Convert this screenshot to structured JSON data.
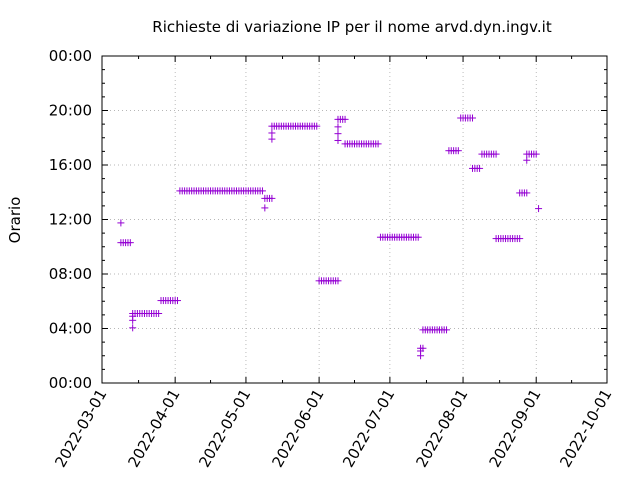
{
  "chart_data": {
    "type": "scatter",
    "title": "Richieste di variazione IP per il nome arvd.dyn.ingv.it",
    "xlabel": "",
    "ylabel": "Orario",
    "x_tick_labels": [
      "2022-03-01",
      "2022-04-01",
      "2022-05-01",
      "2022-06-01",
      "2022-07-01",
      "2022-08-01",
      "2022-09-01",
      "2022-10-01"
    ],
    "y_tick_labels": [
      "00:00",
      "04:00",
      "08:00",
      "12:00",
      "16:00",
      "20:00",
      "00:00"
    ],
    "xlim": [
      "2022-03-01",
      "2022-10-01"
    ],
    "ylim_hours": [
      0,
      24
    ],
    "grid": true,
    "marker": "+",
    "color": "#9400d3",
    "series": [
      {
        "points": [
          [
            "2022-03-09",
            11.75
          ],
          [
            "2022-03-09",
            10.3
          ],
          [
            "2022-03-10",
            10.3
          ],
          [
            "2022-03-11",
            10.3
          ],
          [
            "2022-03-12",
            10.3
          ],
          [
            "2022-03-13",
            10.3
          ],
          [
            "2022-03-14",
            4.05
          ],
          [
            "2022-03-14",
            4.6
          ],
          [
            "2022-03-14",
            4.9
          ],
          [
            "2022-03-14",
            5.1
          ],
          [
            "2022-03-15",
            5.1
          ],
          [
            "2022-03-16",
            5.1
          ],
          [
            "2022-03-17",
            5.1
          ],
          [
            "2022-03-18",
            5.1
          ],
          [
            "2022-03-19",
            5.1
          ],
          [
            "2022-03-20",
            5.1
          ],
          [
            "2022-03-21",
            5.1
          ],
          [
            "2022-03-22",
            5.1
          ],
          [
            "2022-03-23",
            5.1
          ],
          [
            "2022-03-24",
            5.1
          ],
          [
            "2022-03-25",
            5.1
          ],
          [
            "2022-03-26",
            6.05
          ],
          [
            "2022-03-27",
            6.05
          ],
          [
            "2022-03-28",
            6.05
          ],
          [
            "2022-03-29",
            6.05
          ],
          [
            "2022-03-30",
            6.05
          ],
          [
            "2022-03-31",
            6.05
          ],
          [
            "2022-04-01",
            6.05
          ],
          [
            "2022-04-02",
            6.05
          ],
          [
            "2022-04-03",
            14.1
          ],
          [
            "2022-04-04",
            14.1
          ],
          [
            "2022-04-05",
            14.1
          ],
          [
            "2022-04-06",
            14.1
          ],
          [
            "2022-04-07",
            14.1
          ],
          [
            "2022-04-08",
            14.1
          ],
          [
            "2022-04-09",
            14.1
          ],
          [
            "2022-04-10",
            14.1
          ],
          [
            "2022-04-11",
            14.1
          ],
          [
            "2022-04-12",
            14.1
          ],
          [
            "2022-04-13",
            14.1
          ],
          [
            "2022-04-14",
            14.1
          ],
          [
            "2022-04-15",
            14.1
          ],
          [
            "2022-04-16",
            14.1
          ],
          [
            "2022-04-17",
            14.1
          ],
          [
            "2022-04-18",
            14.1
          ],
          [
            "2022-04-19",
            14.1
          ],
          [
            "2022-04-20",
            14.1
          ],
          [
            "2022-04-21",
            14.1
          ],
          [
            "2022-04-22",
            14.1
          ],
          [
            "2022-04-23",
            14.1
          ],
          [
            "2022-04-24",
            14.1
          ],
          [
            "2022-04-25",
            14.1
          ],
          [
            "2022-04-26",
            14.1
          ],
          [
            "2022-04-27",
            14.1
          ],
          [
            "2022-04-28",
            14.1
          ],
          [
            "2022-04-29",
            14.1
          ],
          [
            "2022-04-30",
            14.1
          ],
          [
            "2022-05-01",
            14.1
          ],
          [
            "2022-05-02",
            14.1
          ],
          [
            "2022-05-03",
            14.1
          ],
          [
            "2022-05-04",
            14.1
          ],
          [
            "2022-05-05",
            14.1
          ],
          [
            "2022-05-06",
            14.1
          ],
          [
            "2022-05-07",
            14.1
          ],
          [
            "2022-05-08",
            14.1
          ],
          [
            "2022-05-09",
            12.85
          ],
          [
            "2022-05-09",
            13.55
          ],
          [
            "2022-05-10",
            13.55
          ],
          [
            "2022-05-11",
            13.55
          ],
          [
            "2022-05-12",
            13.55
          ],
          [
            "2022-05-12",
            17.9
          ],
          [
            "2022-05-12",
            18.35
          ],
          [
            "2022-05-12",
            18.85
          ],
          [
            "2022-05-13",
            18.85
          ],
          [
            "2022-05-14",
            18.85
          ],
          [
            "2022-05-15",
            18.85
          ],
          [
            "2022-05-16",
            18.85
          ],
          [
            "2022-05-17",
            18.85
          ],
          [
            "2022-05-18",
            18.85
          ],
          [
            "2022-05-19",
            18.85
          ],
          [
            "2022-05-20",
            18.85
          ],
          [
            "2022-05-21",
            18.85
          ],
          [
            "2022-05-22",
            18.85
          ],
          [
            "2022-05-23",
            18.85
          ],
          [
            "2022-05-24",
            18.85
          ],
          [
            "2022-05-25",
            18.85
          ],
          [
            "2022-05-26",
            18.85
          ],
          [
            "2022-05-27",
            18.85
          ],
          [
            "2022-05-28",
            18.85
          ],
          [
            "2022-05-29",
            18.85
          ],
          [
            "2022-05-30",
            18.85
          ],
          [
            "2022-05-31",
            18.85
          ],
          [
            "2022-06-01",
            7.5
          ],
          [
            "2022-06-02",
            7.5
          ],
          [
            "2022-06-03",
            7.5
          ],
          [
            "2022-06-04",
            7.5
          ],
          [
            "2022-06-05",
            7.5
          ],
          [
            "2022-06-06",
            7.5
          ],
          [
            "2022-06-07",
            7.5
          ],
          [
            "2022-06-08",
            7.5
          ],
          [
            "2022-06-09",
            7.5
          ],
          [
            "2022-06-09",
            17.8
          ],
          [
            "2022-06-09",
            18.3
          ],
          [
            "2022-06-09",
            18.8
          ],
          [
            "2022-06-09",
            19.35
          ],
          [
            "2022-06-10",
            19.35
          ],
          [
            "2022-06-11",
            19.35
          ],
          [
            "2022-06-12",
            19.35
          ],
          [
            "2022-06-12",
            17.55
          ],
          [
            "2022-06-13",
            17.55
          ],
          [
            "2022-06-14",
            17.55
          ],
          [
            "2022-06-15",
            17.55
          ],
          [
            "2022-06-16",
            17.55
          ],
          [
            "2022-06-17",
            17.55
          ],
          [
            "2022-06-18",
            17.55
          ],
          [
            "2022-06-19",
            17.55
          ],
          [
            "2022-06-20",
            17.55
          ],
          [
            "2022-06-21",
            17.55
          ],
          [
            "2022-06-22",
            17.55
          ],
          [
            "2022-06-23",
            17.55
          ],
          [
            "2022-06-24",
            17.55
          ],
          [
            "2022-06-25",
            17.55
          ],
          [
            "2022-06-26",
            17.55
          ],
          [
            "2022-06-27",
            10.7
          ],
          [
            "2022-06-28",
            10.7
          ],
          [
            "2022-06-29",
            10.7
          ],
          [
            "2022-06-30",
            10.7
          ],
          [
            "2022-07-01",
            10.7
          ],
          [
            "2022-07-02",
            10.7
          ],
          [
            "2022-07-03",
            10.7
          ],
          [
            "2022-07-04",
            10.7
          ],
          [
            "2022-07-05",
            10.7
          ],
          [
            "2022-07-06",
            10.7
          ],
          [
            "2022-07-07",
            10.7
          ],
          [
            "2022-07-08",
            10.7
          ],
          [
            "2022-07-09",
            10.7
          ],
          [
            "2022-07-10",
            10.7
          ],
          [
            "2022-07-11",
            10.7
          ],
          [
            "2022-07-12",
            10.7
          ],
          [
            "2022-07-13",
            10.7
          ],
          [
            "2022-07-14",
            2.0
          ],
          [
            "2022-07-14",
            2.35
          ],
          [
            "2022-07-14",
            2.55
          ],
          [
            "2022-07-15",
            2.55
          ],
          [
            "2022-07-15",
            3.9
          ],
          [
            "2022-07-16",
            3.9
          ],
          [
            "2022-07-17",
            3.9
          ],
          [
            "2022-07-18",
            3.9
          ],
          [
            "2022-07-19",
            3.9
          ],
          [
            "2022-07-20",
            3.9
          ],
          [
            "2022-07-21",
            3.9
          ],
          [
            "2022-07-22",
            3.9
          ],
          [
            "2022-07-23",
            3.9
          ],
          [
            "2022-07-24",
            3.9
          ],
          [
            "2022-07-25",
            3.9
          ],
          [
            "2022-07-26",
            17.05
          ],
          [
            "2022-07-27",
            17.05
          ],
          [
            "2022-07-28",
            17.05
          ],
          [
            "2022-07-29",
            17.05
          ],
          [
            "2022-07-30",
            17.05
          ],
          [
            "2022-07-31",
            19.45
          ],
          [
            "2022-08-01",
            19.45
          ],
          [
            "2022-08-02",
            19.45
          ],
          [
            "2022-08-03",
            19.45
          ],
          [
            "2022-08-04",
            19.45
          ],
          [
            "2022-08-05",
            19.45
          ],
          [
            "2022-08-05",
            15.75
          ],
          [
            "2022-08-06",
            15.75
          ],
          [
            "2022-08-07",
            15.75
          ],
          [
            "2022-08-08",
            15.75
          ],
          [
            "2022-08-09",
            16.8
          ],
          [
            "2022-08-10",
            16.8
          ],
          [
            "2022-08-11",
            16.8
          ],
          [
            "2022-08-12",
            16.8
          ],
          [
            "2022-08-13",
            16.8
          ],
          [
            "2022-08-14",
            16.8
          ],
          [
            "2022-08-15",
            16.8
          ],
          [
            "2022-08-15",
            10.6
          ],
          [
            "2022-08-16",
            10.6
          ],
          [
            "2022-08-17",
            10.6
          ],
          [
            "2022-08-18",
            10.6
          ],
          [
            "2022-08-19",
            10.6
          ],
          [
            "2022-08-20",
            10.6
          ],
          [
            "2022-08-21",
            10.6
          ],
          [
            "2022-08-22",
            10.6
          ],
          [
            "2022-08-23",
            10.6
          ],
          [
            "2022-08-24",
            10.6
          ],
          [
            "2022-08-25",
            10.6
          ],
          [
            "2022-08-25",
            13.95
          ],
          [
            "2022-08-26",
            13.95
          ],
          [
            "2022-08-27",
            13.95
          ],
          [
            "2022-08-28",
            13.95
          ],
          [
            "2022-08-28",
            16.35
          ],
          [
            "2022-08-28",
            16.8
          ],
          [
            "2022-08-29",
            16.8
          ],
          [
            "2022-08-30",
            16.8
          ],
          [
            "2022-08-31",
            16.8
          ],
          [
            "2022-09-01",
            16.8
          ],
          [
            "2022-09-02",
            12.8
          ]
        ]
      }
    ]
  }
}
